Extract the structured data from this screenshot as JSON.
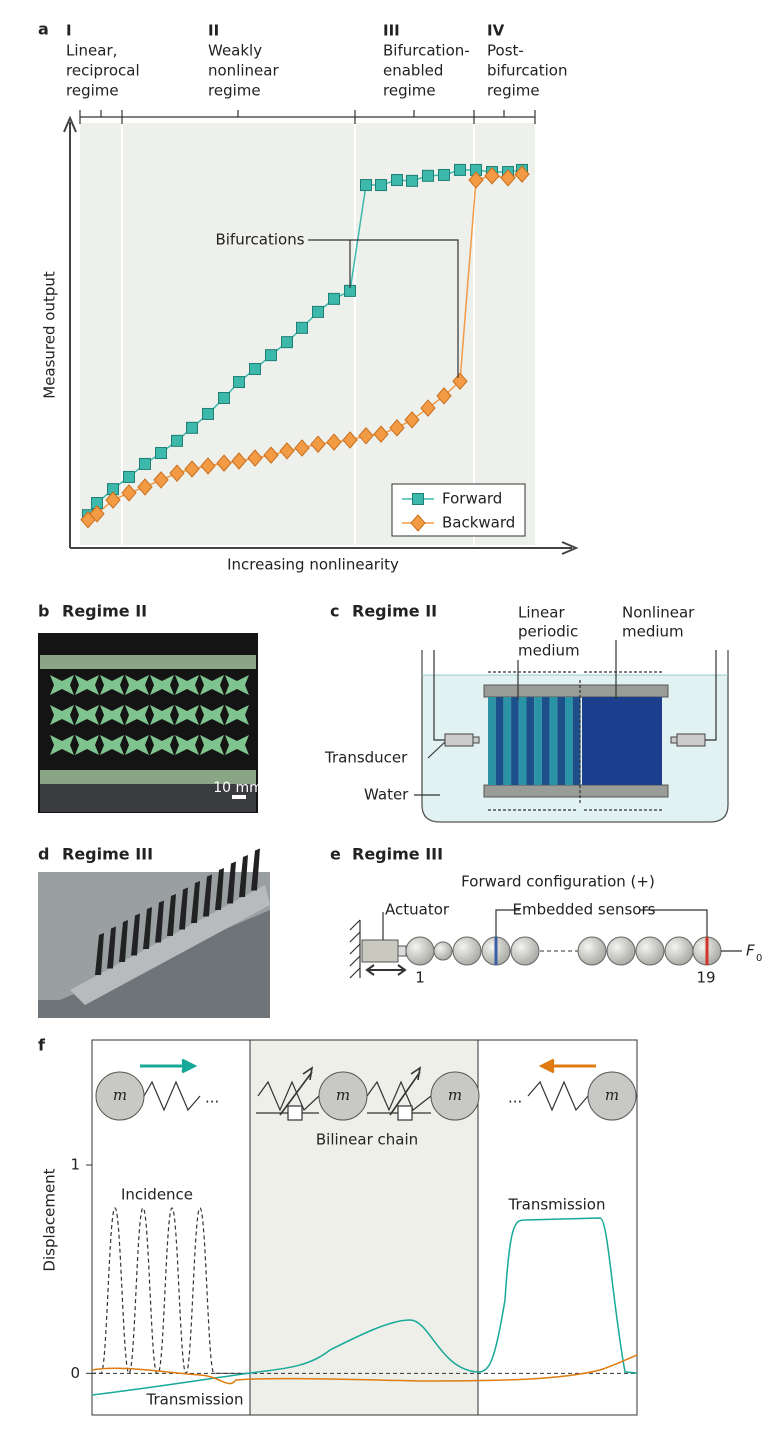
{
  "panel_a": {
    "letter": "a",
    "regimes": [
      {
        "numeral": "I",
        "lines": [
          "Linear,",
          "reciprocal",
          "regime"
        ]
      },
      {
        "numeral": "II",
        "lines": [
          "Weakly",
          "nonlinear",
          "regime"
        ]
      },
      {
        "numeral": "III",
        "lines": [
          "Bifurcation-",
          "enabled",
          "regime"
        ]
      },
      {
        "numeral": "IV",
        "lines": [
          "Post-",
          "bifurcation",
          "regime"
        ]
      }
    ],
    "annotation": "Bifurcations",
    "chart_data": {
      "type": "line",
      "x_label": "Increasing nonlinearity",
      "y_label": "Measured output",
      "xlim": [
        0,
        100
      ],
      "ylim": [
        0,
        100
      ],
      "legend": "bottom-right",
      "series": [
        {
          "name": "Forward",
          "color": "#3cb9ab",
          "marker": "square",
          "x": [
            3.6,
            5.4,
            8.6,
            11.8,
            15,
            18.2,
            21.4,
            24.4,
            27.6,
            30.8,
            33.8,
            37,
            40.2,
            43.4,
            46.4,
            49.6,
            52.8,
            56,
            59.2,
            62.2,
            65.4,
            68.4,
            71.6,
            74.8,
            78,
            81.2,
            84.4,
            87.6,
            90.4
          ],
          "values": [
            7.1,
            10,
            13.3,
            16.2,
            19.3,
            21.9,
            24.8,
            27.9,
            31.2,
            35,
            38.8,
            41.9,
            45.2,
            48.3,
            51.7,
            55.5,
            58.6,
            60.5,
            85.7,
            85.7,
            86.9,
            86.7,
            87.9,
            88.1,
            89.3,
            89.3,
            88.8,
            88.8,
            89.3
          ]
        },
        {
          "name": "Backward",
          "color": "#f39a45",
          "marker": "diamond",
          "x": [
            3.6,
            5.4,
            8.6,
            11.8,
            15,
            18.2,
            21.4,
            24.4,
            27.6,
            30.8,
            33.8,
            37,
            40.2,
            43.4,
            46.4,
            49.6,
            52.8,
            56,
            59.2,
            62.2,
            65.4,
            68.4,
            71.6,
            74.8,
            78,
            81.2,
            84.4,
            87.6,
            90.4
          ],
          "values": [
            6,
            7.4,
            10.7,
            12.4,
            13.8,
            15.5,
            17.1,
            18.1,
            18.8,
            19.5,
            20,
            20.7,
            21.4,
            22.4,
            23.1,
            24,
            24.5,
            25,
            26,
            26.4,
            27.9,
            29.8,
            32.6,
            35.5,
            39,
            86.9,
            87.9,
            87.4,
            88.3
          ]
        }
      ]
    }
  },
  "panel_b": {
    "letter": "b",
    "title": "Regime II",
    "scale_bar": "10 mm"
  },
  "panel_c": {
    "letter": "c",
    "title": "Regime II",
    "linear_label": [
      "Linear",
      "periodic",
      "medium"
    ],
    "nonlinear_label": [
      "Nonlinear",
      "medium"
    ],
    "transducer": "Transducer",
    "water": "Water"
  },
  "panel_d": {
    "letter": "d",
    "title": "Regime III"
  },
  "panel_e": {
    "letter": "e",
    "title": "Regime III",
    "configuration": "Forward configuration (+)",
    "actuator": "Actuator",
    "sensors": "Embedded sensors",
    "first_index": "1",
    "last_index": "19",
    "force_label": "F",
    "force_subscript": "0"
  },
  "panel_f": {
    "letter": "f",
    "masses": [
      "m",
      "m",
      "m",
      "m"
    ],
    "chain_label": "Bilinear chain",
    "incidence": "Incidence",
    "transmission_labels": [
      "Transmission",
      "Transmission"
    ],
    "chart_data": {
      "type": "line",
      "y_label": "Displacement",
      "ylim": [
        -0.2,
        1.6
      ],
      "yticks": [
        0,
        1
      ]
    }
  }
}
